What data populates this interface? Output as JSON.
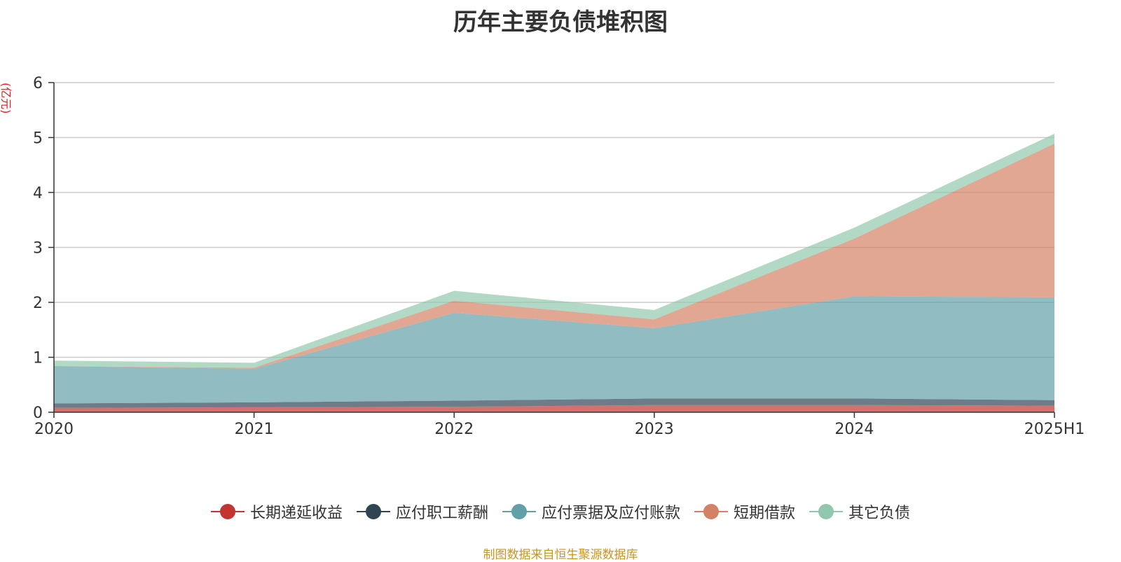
{
  "title": "历年主要负债堆积图",
  "unit_label": "(亿元)",
  "footer": "制图数据来自恒生聚源数据库",
  "footer_color": "#c8961e",
  "chart_data": {
    "type": "area",
    "stacked": true,
    "title": "历年主要负债堆积图",
    "ylabel": "(亿元)",
    "xlabel": "",
    "categories": [
      "2020",
      "2021",
      "2022",
      "2023",
      "2024",
      "2025H1"
    ],
    "ylim": [
      0,
      6
    ],
    "yticks": [
      0,
      1,
      2,
      3,
      4,
      5,
      6
    ],
    "grid": true,
    "legend_position": "bottom",
    "series": [
      {
        "name": "长期递延收益",
        "color": "#c23531",
        "values": [
          0.08,
          0.09,
          0.1,
          0.13,
          0.13,
          0.12
        ]
      },
      {
        "name": "应付职工薪酬",
        "color": "#2f4554",
        "values": [
          0.08,
          0.09,
          0.11,
          0.12,
          0.12,
          0.1
        ]
      },
      {
        "name": "应付票据及应付账款",
        "color": "#61a0a8",
        "values": [
          0.68,
          0.61,
          1.6,
          1.28,
          1.86,
          1.87
        ]
      },
      {
        "name": "短期借款",
        "color": "#d48265",
        "values": [
          0.0,
          0.02,
          0.22,
          0.16,
          1.05,
          2.8
        ]
      },
      {
        "name": "其它负债",
        "color": "#91c7ae",
        "values": [
          0.1,
          0.09,
          0.18,
          0.17,
          0.2,
          0.18
        ]
      }
    ]
  }
}
